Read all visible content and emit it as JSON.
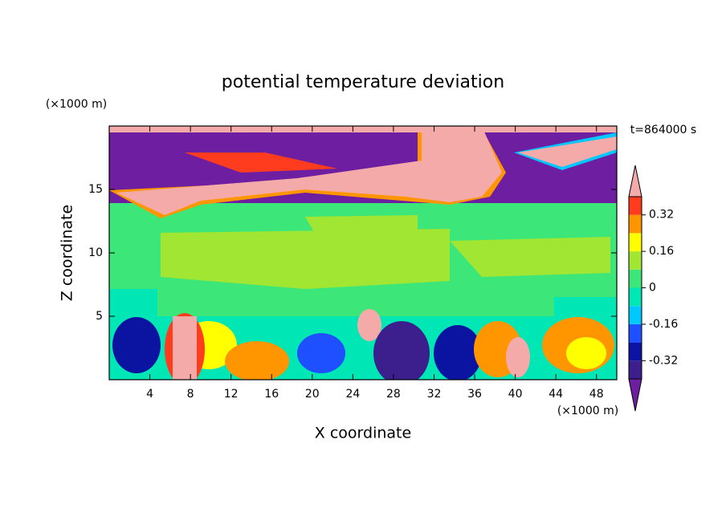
{
  "chart_data": {
    "type": "contour",
    "title": "potential temperature deviation",
    "x_label": "X coordinate",
    "y_label": "Z coordinate",
    "x_unit": "(×1000 m)",
    "y_unit": "(×1000 m)",
    "annotation": "t=864000 s",
    "xlim": [
      0,
      50
    ],
    "ylim": [
      0,
      20
    ],
    "xticks": [
      4,
      8,
      12,
      16,
      20,
      24,
      28,
      32,
      36,
      40,
      44,
      48
    ],
    "yticks": [
      5,
      10,
      15
    ],
    "colorbar": {
      "levels": [
        -0.4,
        -0.32,
        -0.24,
        -0.16,
        -0.08,
        0,
        0.08,
        0.16,
        0.24,
        0.32,
        0.4
      ],
      "colors": [
        "#3c1e8c",
        "#0a14a0",
        "#1e50ff",
        "#00c8ff",
        "#00e6b4",
        "#3ce678",
        "#a0e632",
        "#ffff00",
        "#ff9600",
        "#ff3c1e"
      ],
      "under_color": "#6e1ea0",
      "over_color": "#f5aaaa",
      "ticks": [
        -0.32,
        -0.16,
        0,
        0.16,
        0.32
      ]
    }
  }
}
